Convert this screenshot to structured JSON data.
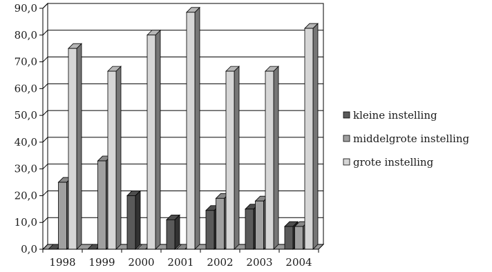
{
  "chart_data": {
    "type": "bar",
    "categories": [
      "1998",
      "1999",
      "2000",
      "2001",
      "2002",
      "2003",
      "2004"
    ],
    "series": [
      {
        "name": "kleine instelling",
        "values": [
          0.0,
          0.0,
          20.0,
          11.0,
          14.5,
          15.0,
          8.5
        ],
        "color": "#5a5a5a"
      },
      {
        "name": "middelgrote instelling",
        "values": [
          25.0,
          33.0,
          0.0,
          0.0,
          19.0,
          18.0,
          8.5
        ],
        "color": "#a0a0a0"
      },
      {
        "name": "grote instelling",
        "values": [
          75.0,
          66.5,
          80.0,
          88.5,
          66.5,
          66.5,
          82.5
        ],
        "color": "#d6d6d6"
      }
    ],
    "title": "",
    "xlabel": "",
    "ylabel": "",
    "ylim": [
      0,
      90
    ],
    "yticks": [
      "0,0",
      "10,0",
      "20,0",
      "30,0",
      "40,0",
      "50,0",
      "60,0",
      "70,0",
      "80,0",
      "90,0"
    ],
    "grid": true,
    "legend_position": "right",
    "style": "3d-bar"
  }
}
